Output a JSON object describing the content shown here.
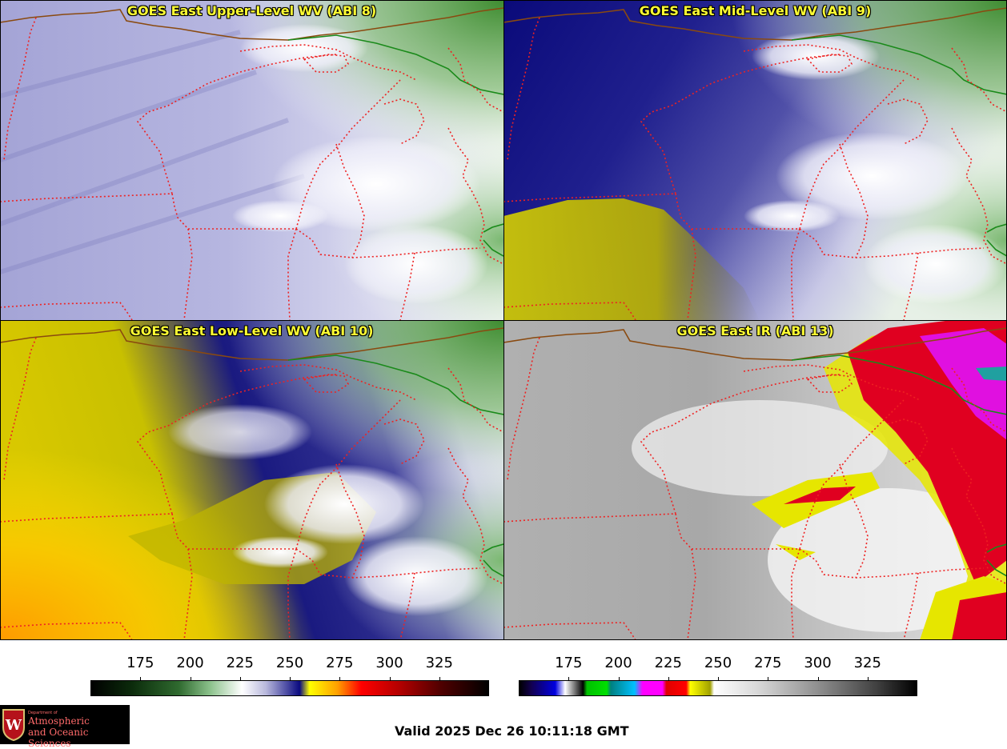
{
  "panels": {
    "upper_level": {
      "title": "GOES East Upper-Level WV (ABI 8)"
    },
    "mid_level": {
      "title": "GOES East Mid-Level WV (ABI 9)"
    },
    "low_level": {
      "title": "GOES East Low-Level WV (ABI 10)"
    },
    "ir": {
      "title": "GOES East IR (ABI 13)"
    }
  },
  "colorbars": {
    "wv": {
      "ticks": [
        "175",
        "200",
        "225",
        "250",
        "275",
        "300",
        "325"
      ]
    },
    "ir": {
      "ticks": [
        "175",
        "200",
        "225",
        "250",
        "275",
        "300",
        "325"
      ]
    }
  },
  "valid_time": "Valid 2025 Dec 26 10:11:18 GMT",
  "logo": {
    "small_text": "Department of",
    "line1": "Atmospheric",
    "line2": "and Oceanic Sciences",
    "seal_letter": "W"
  },
  "colors": {
    "title_text": "#ffff33",
    "state_border": "#ee2222",
    "country_border": "#1a8a1a",
    "coast": "#8a4a10"
  }
}
